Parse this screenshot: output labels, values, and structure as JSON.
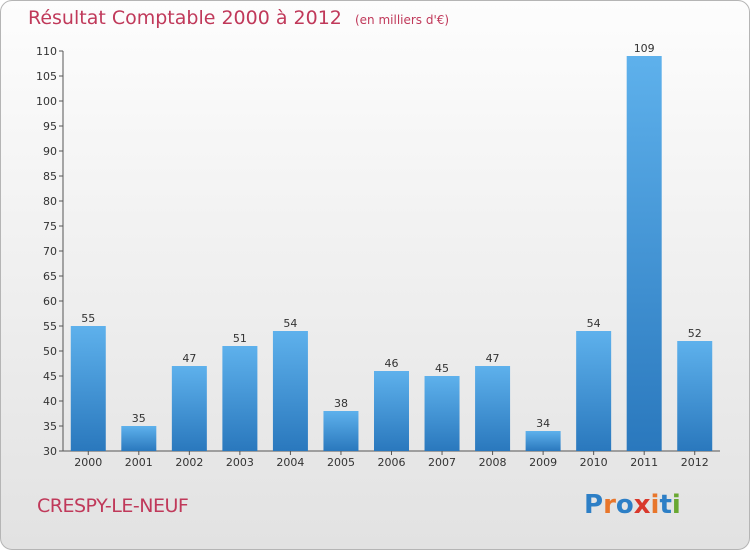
{
  "chart_data": {
    "type": "bar",
    "title": "Résultat Comptable 2000 à 2012",
    "subtitle": "(en milliers d'€)",
    "xlabel": "",
    "ylabel": "",
    "categories": [
      "2000",
      "2001",
      "2002",
      "2003",
      "2004",
      "2005",
      "2006",
      "2007",
      "2008",
      "2009",
      "2010",
      "2011",
      "2012"
    ],
    "values": [
      55,
      35,
      47,
      51,
      54,
      38,
      46,
      45,
      47,
      34,
      54,
      109,
      52
    ],
    "ylim": [
      30,
      110
    ],
    "yticks": [
      30,
      35,
      40,
      45,
      50,
      55,
      60,
      65,
      70,
      75,
      80,
      85,
      90,
      95,
      100,
      105,
      110
    ],
    "grid": false,
    "legend": "none",
    "bar_color": "#3d93d9"
  },
  "footer": {
    "commune": "CRESPY-LE-NEUF",
    "logo": "Proxiti"
  }
}
